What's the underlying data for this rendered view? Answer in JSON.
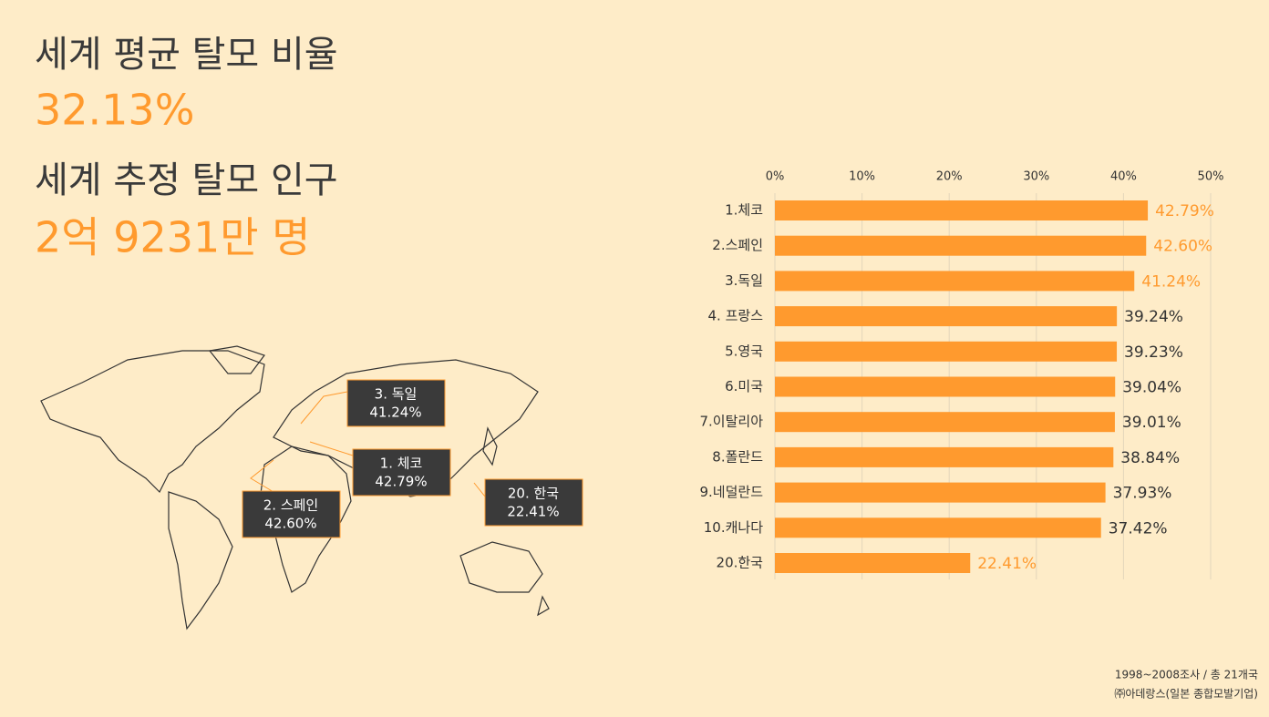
{
  "header": {
    "title1": "세계 평균 탈모 비율",
    "value1": "32.13%",
    "title2": "세계 추정 탈모 인구",
    "value2": "2억 9231만 명"
  },
  "map_labels": [
    {
      "name": "3. 독일",
      "value": "41.24%"
    },
    {
      "name": "1. 체코",
      "value": "42.79%"
    },
    {
      "name": "2. 스페인",
      "value": "42.60%"
    },
    {
      "name": "20. 한국",
      "value": "22.41%"
    }
  ],
  "footer": [
    "1998~2008조사 / 총 21개국",
    "㈜아데랑스(일본 종합모발기업)"
  ],
  "chart_data": {
    "type": "bar",
    "orientation": "horizontal",
    "categories": [
      "1.체코",
      "2.스페인",
      "3.독일",
      "4. 프랑스",
      "5.영국",
      "6.미국",
      "7.이탈리아",
      "8.폴란드",
      "9.네덜란드",
      "10.캐나다",
      "20.한국"
    ],
    "values": [
      42.79,
      42.6,
      41.24,
      39.24,
      39.23,
      39.04,
      39.01,
      38.84,
      37.93,
      37.42,
      22.41
    ],
    "value_labels": [
      "42.79%",
      "42.60%",
      "41.24%",
      "39.24%",
      "39.23%",
      "39.04%",
      "39.01%",
      "38.84%",
      "37.93%",
      "37.42%",
      "22.41%"
    ],
    "value_label_colors": [
      "#ff9a2e",
      "#ff9a2e",
      "#ff9a2e",
      "#333333",
      "#333333",
      "#333333",
      "#333333",
      "#333333",
      "#333333",
      "#333333",
      "#ff9a2e"
    ],
    "color": "#ff9a2e",
    "xlim": [
      0,
      50
    ],
    "xticks": [
      {
        "value": 0,
        "label": "0%"
      },
      {
        "value": 10,
        "label": "10%"
      },
      {
        "value": 20,
        "label": "20%"
      },
      {
        "value": 30,
        "label": "30%"
      },
      {
        "value": 40,
        "label": "40%"
      },
      {
        "value": 50,
        "label": "50%"
      }
    ],
    "grid": true
  }
}
